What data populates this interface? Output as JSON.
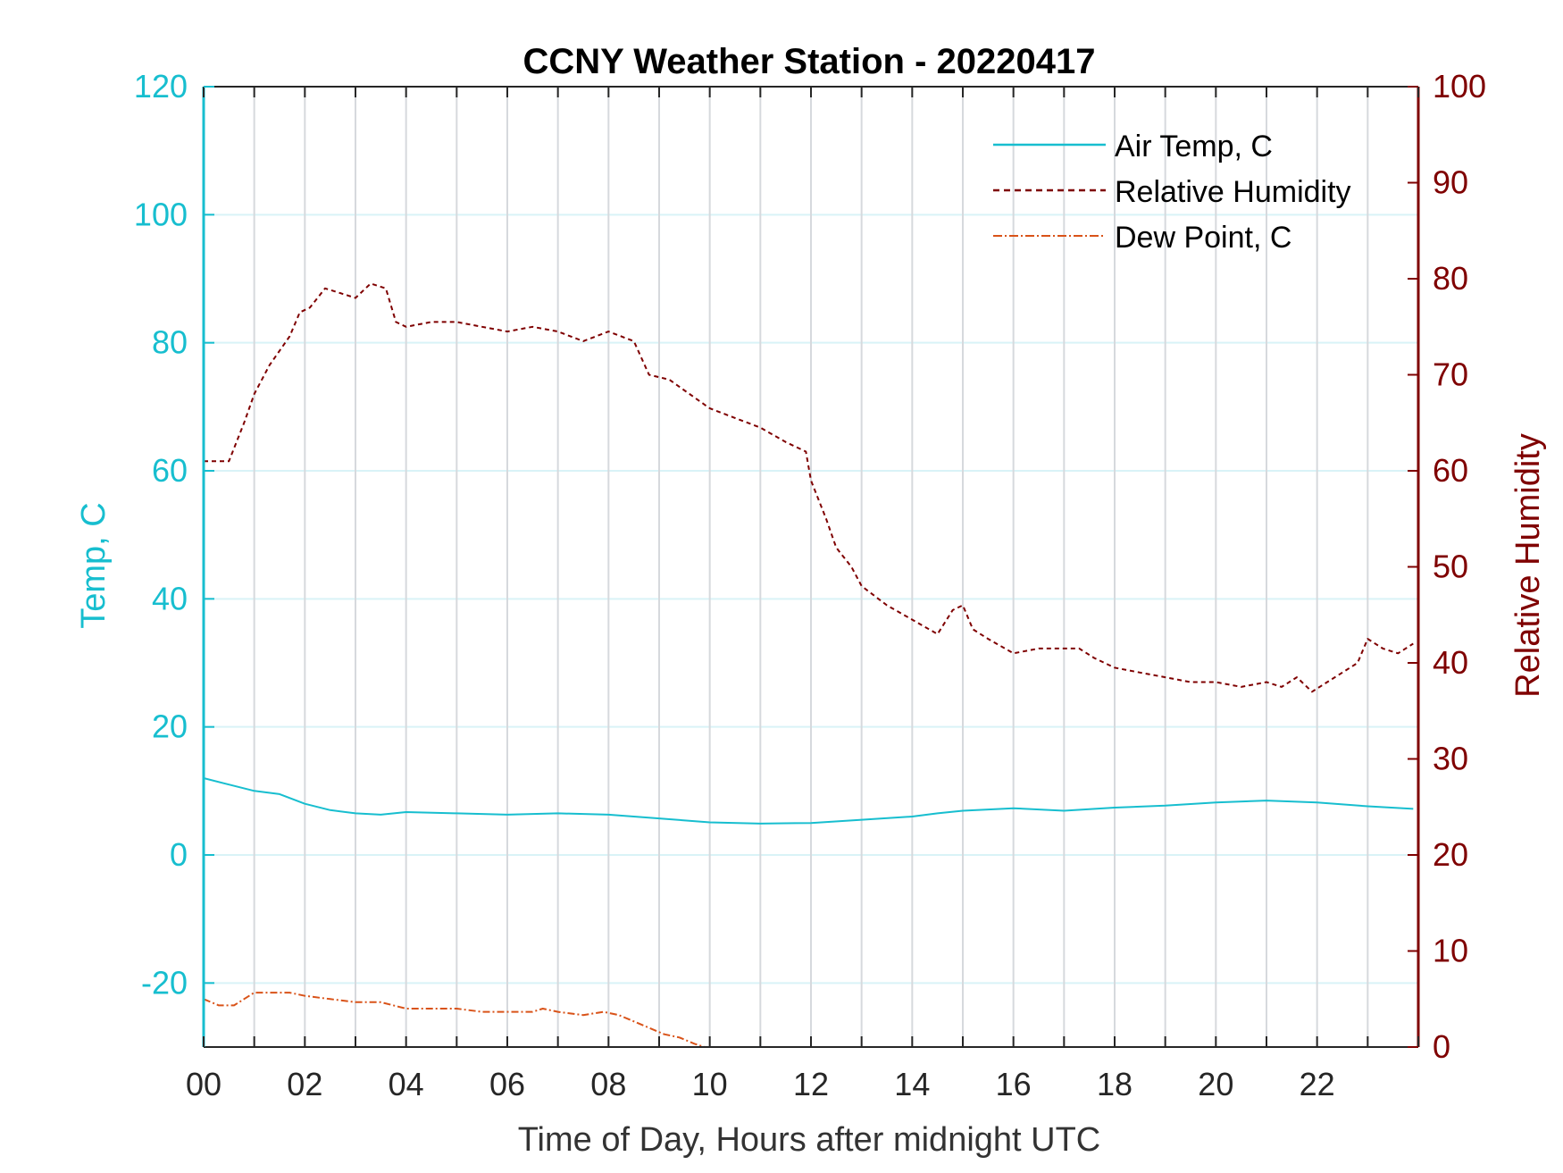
{
  "chart_data": {
    "type": "line",
    "title": "CCNY Weather Station - 20220417",
    "xlabel": "Time of Day, Hours after midnight UTC",
    "ylabel_left": "Temp, C",
    "ylabel_right": "Relative Humidity",
    "xlim": [
      0,
      24
    ],
    "ylim_left": [
      -30,
      120
    ],
    "ylim_right": [
      0,
      100
    ],
    "x_ticks": [
      0,
      2,
      4,
      6,
      8,
      10,
      12,
      14,
      16,
      18,
      20,
      22
    ],
    "x_tick_labels": [
      "00",
      "02",
      "04",
      "06",
      "08",
      "10",
      "12",
      "14",
      "16",
      "18",
      "20",
      "22"
    ],
    "y_ticks_left": [
      -20,
      0,
      20,
      40,
      60,
      80,
      100,
      120
    ],
    "y_tick_labels_left": [
      "-20",
      "0",
      "20",
      "40",
      "60",
      "80",
      "100",
      "120"
    ],
    "y_ticks_right": [
      0,
      10,
      20,
      30,
      40,
      50,
      60,
      70,
      80,
      90,
      100
    ],
    "y_tick_labels_right": [
      "0",
      "10",
      "20",
      "30",
      "40",
      "50",
      "60",
      "70",
      "80",
      "90",
      "100"
    ],
    "grid": true,
    "legend_position": "top-right",
    "colors": {
      "left_axis": "#17becf",
      "right_axis": "#7f0000",
      "air_temp": "#17becf",
      "humidity": "#7f0000",
      "dew_point": "#d95319",
      "grid_vertical": "#d6d9dd",
      "grid_horizontal": "#d9f3f7"
    },
    "series": [
      {
        "name": "Air Temp, C",
        "axis": "left",
        "style": "solid",
        "x": [
          0,
          0.5,
          1,
          1.5,
          2,
          2.5,
          3,
          3.5,
          4,
          5,
          6,
          7,
          8,
          9,
          10,
          11,
          12,
          13,
          14,
          14.5,
          15,
          16,
          17,
          18,
          19,
          20,
          21,
          22,
          23,
          23.9
        ],
        "values": [
          12,
          11,
          10,
          9.5,
          8,
          7,
          6.5,
          6.3,
          6.7,
          6.5,
          6.3,
          6.5,
          6.3,
          5.7,
          5.1,
          4.9,
          5,
          5.5,
          6,
          6.5,
          6.9,
          7.3,
          6.9,
          7.4,
          7.7,
          8.2,
          8.5,
          8.2,
          7.6,
          7.2
        ]
      },
      {
        "name": "Relative Humidity",
        "axis": "right",
        "style": "dashed",
        "x": [
          0,
          0.5,
          0.8,
          1.0,
          1.3,
          1.7,
          1.9,
          2.1,
          2.4,
          2.7,
          3.0,
          3.3,
          3.6,
          3.8,
          4.0,
          4.5,
          5.0,
          5.5,
          6.0,
          6.5,
          7.0,
          7.5,
          8.0,
          8.5,
          8.8,
          9.2,
          9.6,
          10.0,
          10.5,
          11.0,
          11.5,
          11.9,
          12.0,
          12.3,
          12.5,
          12.8,
          13.0,
          13.5,
          14.0,
          14.5,
          14.8,
          15.0,
          15.2,
          15.5,
          16.0,
          16.5,
          17.0,
          17.3,
          17.6,
          18.0,
          18.5,
          19.0,
          19.5,
          20.0,
          20.5,
          21.0,
          21.3,
          21.6,
          21.9,
          22.2,
          22.5,
          22.8,
          23.0,
          23.3,
          23.6,
          23.9
        ],
        "values": [
          61,
          61,
          65,
          68,
          71,
          74,
          76.5,
          77,
          79,
          78.5,
          78,
          79.5,
          79,
          75.5,
          75,
          75.5,
          75.5,
          75,
          74.5,
          75,
          74.5,
          73.5,
          74.5,
          73.5,
          70,
          69.5,
          68,
          66.5,
          65.5,
          64.5,
          63,
          62,
          59,
          55,
          52,
          50,
          48,
          46,
          44.5,
          43,
          45.5,
          46,
          43.5,
          42.5,
          41,
          41.5,
          41.5,
          41.5,
          40.5,
          39.5,
          39,
          38.5,
          38,
          38,
          37.5,
          38,
          37.5,
          38.5,
          37,
          38,
          39,
          40,
          42.5,
          41.5,
          41,
          42
        ]
      },
      {
        "name": "Dew Point, C",
        "axis": "left",
        "style": "dashdot",
        "x": [
          0,
          0.3,
          0.6,
          1.0,
          1.3,
          1.7,
          2.0,
          2.5,
          3.0,
          3.5,
          4.0,
          4.5,
          5.0,
          5.5,
          6.0,
          6.5,
          6.7,
          7.0,
          7.5,
          7.9,
          8.2,
          8.5,
          8.8,
          9.1,
          9.4,
          9.7,
          9.9
        ],
        "values": [
          -22.5,
          -23.5,
          -23.5,
          -21.5,
          -21.5,
          -21.5,
          -22,
          -22.5,
          -23,
          -23,
          -24,
          -24,
          -24,
          -24.5,
          -24.5,
          -24.5,
          -24,
          -24.5,
          -25,
          -24.5,
          -25,
          -26,
          -27,
          -28,
          -28.5,
          -29.5,
          -30
        ]
      }
    ]
  }
}
